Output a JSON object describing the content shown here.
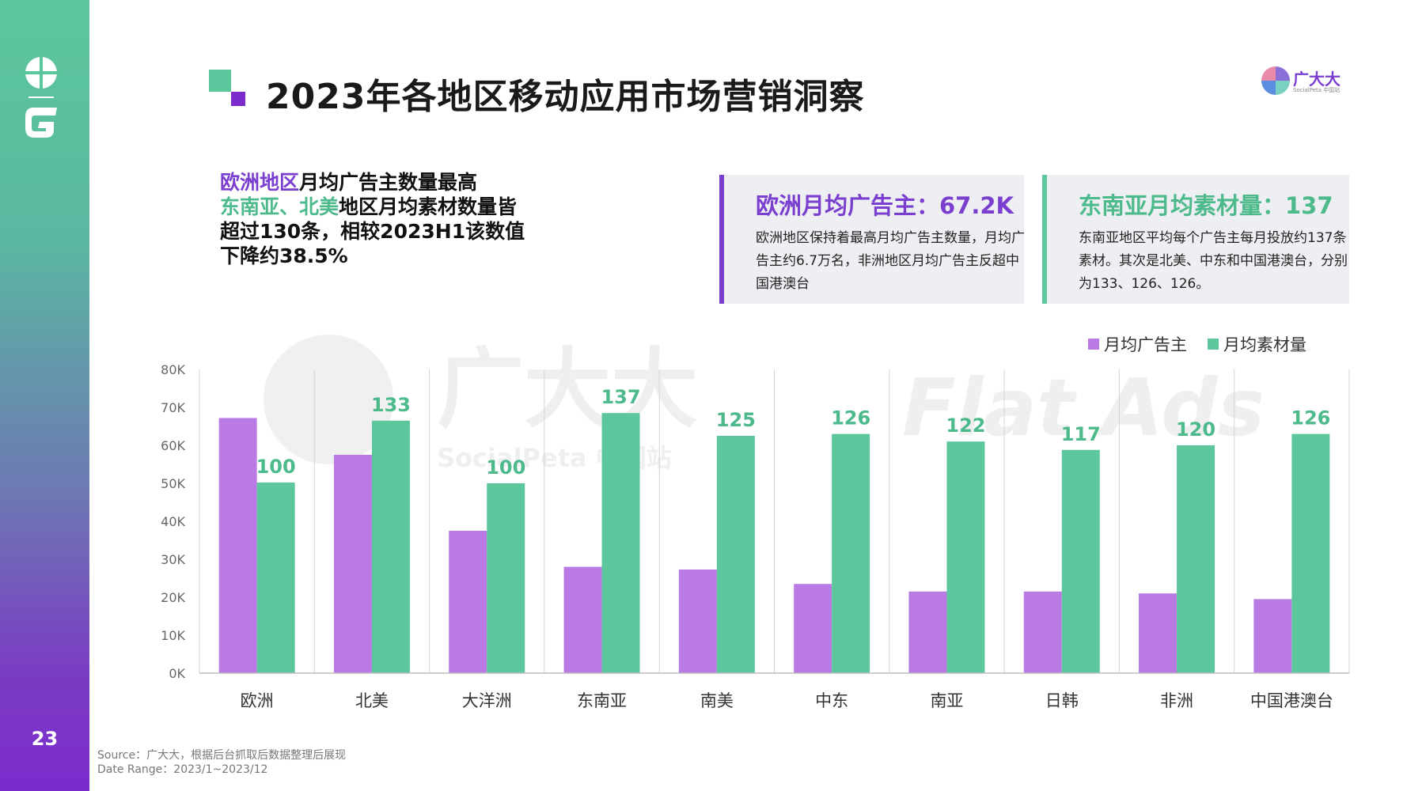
{
  "page": {
    "title": "2023年各地区移动应用市场营销洞察",
    "number": "23"
  },
  "brand": {
    "name": "广大大",
    "sub": "SocialPeta 中国站"
  },
  "headline": {
    "line1_hl": "欧洲地区",
    "line1_rest": "月均广告主数量最高",
    "line2_hl": "东南亚、北美",
    "line2_rest": "地区月均素材数量皆",
    "line3": "超过130条，相较2023H1该数值",
    "line4": "下降约38.5%"
  },
  "cards": [
    {
      "title": "欧洲月均广告主：67.2K",
      "text": "欧洲地区保持着最高月均广告主数量，月均广告主约6.7万名，非洲地区月均广告主反超中国港澳台"
    },
    {
      "title": "东南亚月均素材量：137",
      "text": "东南亚地区平均每个广告主每月投放约137条素材。其次是北美、中东和中国港澳台，分别为133、126、126。"
    }
  ],
  "watermark": {
    "brand": "广大大",
    "brand_sub": "SocialPeta 中国站",
    "flatads": "Flat Ads"
  },
  "colors": {
    "purple": "#b97be3",
    "green": "#5cc79c",
    "accent_purple": "#7b3fd0",
    "accent_green": "#4cba8a"
  },
  "chart_data": {
    "type": "bar",
    "categories": [
      "欧洲",
      "北美",
      "大洋洲",
      "东南亚",
      "南美",
      "中东",
      "南亚",
      "日韩",
      "非洲",
      "中国港澳台"
    ],
    "series": [
      {
        "name": "月均广告主",
        "values": [
          67200,
          57500,
          37500,
          28000,
          27300,
          23500,
          21500,
          21500,
          21000,
          19500
        ]
      },
      {
        "name": "月均素材量",
        "values": [
          100,
          133,
          100,
          137,
          125,
          126,
          122,
          117,
          120,
          126
        ],
        "scaled_values": [
          50200,
          66500,
          50000,
          68500,
          62500,
          63000,
          61000,
          58800,
          60000,
          63000
        ]
      }
    ],
    "y_ticks": [
      "0K",
      "10K",
      "20K",
      "30K",
      "40K",
      "50K",
      "60K",
      "70K",
      "80K"
    ],
    "ylim": [
      0,
      80000
    ],
    "legend_position": "top-right"
  },
  "source": {
    "line1": "Source：广大大，根据后台抓取后数据整理后展现",
    "line2": "Date Range：2023/1~2023/12"
  }
}
